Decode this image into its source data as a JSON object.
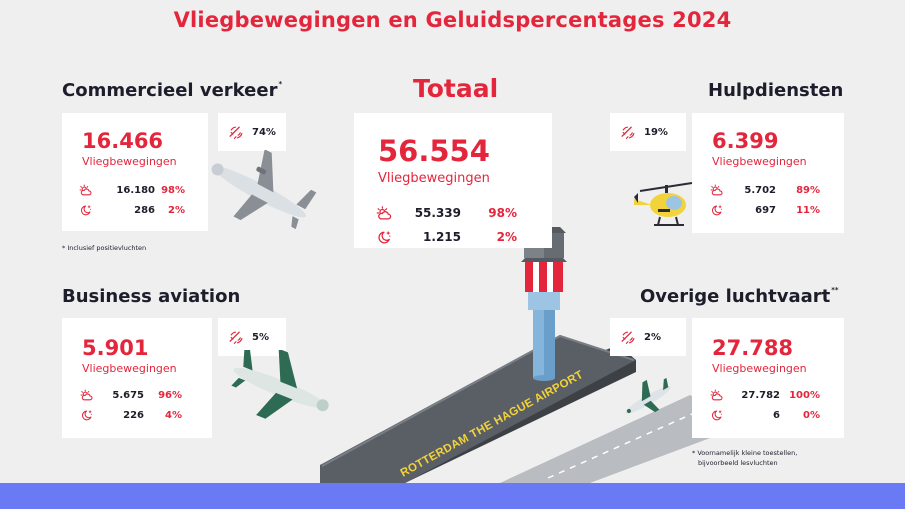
{
  "title": "Vliegbewegingen en Geluidspercentages 2024",
  "label_vliegbewegingen": "Vliegbewegingen",
  "commercieel": {
    "title": "Commercieel verkeer",
    "mark": "*",
    "total": "16.466",
    "day_value": "16.180",
    "day_pct": "98%",
    "night_value": "286",
    "night_pct": "2%",
    "noise_share": "74%",
    "note": "* Inclusief positievluchten"
  },
  "totaal": {
    "title": "Totaal",
    "total": "56.554",
    "day_value": "55.339",
    "day_pct": "98%",
    "night_value": "1.215",
    "night_pct": "2%"
  },
  "hulpdiensten": {
    "title": "Hulpdiensten",
    "total": "6.399",
    "day_value": "5.702",
    "day_pct": "89%",
    "night_value": "697",
    "night_pct": "11%",
    "noise_share": "19%"
  },
  "business": {
    "title": "Business aviation",
    "total": "5.901",
    "day_value": "5.675",
    "day_pct": "96%",
    "night_value": "226",
    "night_pct": "4%",
    "noise_share": "5%"
  },
  "overige": {
    "title": "Overige luchtvaart",
    "mark": "**",
    "total": "27.788",
    "day_value": "27.782",
    "day_pct": "100%",
    "night_value": "6",
    "night_pct": "0%",
    "noise_share": "2%",
    "note_line1": "* Voornamelijk kleine toestellen,",
    "note_line2": "bijvoorbeeld lesvluchten"
  },
  "runway_label": "ROTTERDAM THE HAGUE AIRPORT",
  "icons": {
    "day": "sun-cloud-icon",
    "night": "moon-stars-icon",
    "noise": "sound-waves-icon"
  },
  "colors": {
    "accent_red": "#e3263c",
    "text_dark": "#1d1d2b",
    "background": "#efefef",
    "bottom_bar": "#6a79f4",
    "runway": "#5a5f66",
    "runway_marking": "#f3d33a"
  }
}
